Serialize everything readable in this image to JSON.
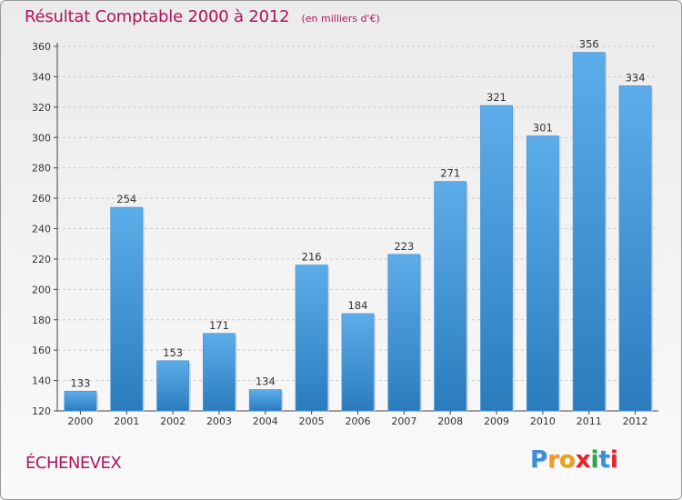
{
  "chart_data": {
    "type": "bar",
    "title": "Résultat Comptable 2000 à 2012",
    "unit_label": "(en milliers d'€)",
    "categories": [
      "2000",
      "2001",
      "2002",
      "2003",
      "2004",
      "2005",
      "2006",
      "2007",
      "2008",
      "2009",
      "2010",
      "2011",
      "2012"
    ],
    "values": [
      133,
      254,
      153,
      171,
      134,
      216,
      184,
      223,
      271,
      321,
      301,
      356,
      334
    ],
    "ylim": [
      120,
      360
    ],
    "yticks": [
      120,
      140,
      160,
      180,
      200,
      220,
      240,
      260,
      280,
      300,
      320,
      340,
      360
    ],
    "grid": true,
    "xlabel": "",
    "ylabel": "",
    "bar_color_top": "#5dadea",
    "bar_color_bottom": "#2a7cbd"
  },
  "location": "ÉCHENEVEX",
  "logo": {
    "letters": [
      "P",
      "r",
      "o",
      "x",
      "i",
      "t",
      "i"
    ],
    "colors": [
      "#3a8fd6",
      "#f39a1c",
      "#e8a21a",
      "#e8222c",
      "#2aa64a",
      "#3a8fd6",
      "#e8222c"
    ]
  }
}
